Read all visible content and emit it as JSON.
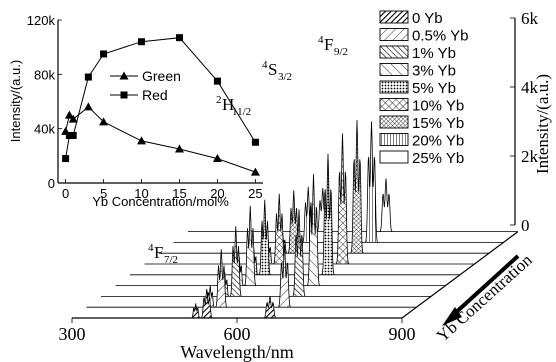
{
  "chart_data": [
    {
      "type": "line",
      "panel": "main-3d-spectra",
      "xlabel": "Wavelength/nm",
      "ylabel": "Intensity/(a.u.)",
      "zlabel": "Yb Concentration",
      "x_ticks": [
        "300",
        "600",
        "900"
      ],
      "xlim": [
        300,
        900
      ],
      "y_ticks": [
        "0",
        "2k",
        "4k",
        "6k"
      ],
      "ylim": [
        0,
        6000
      ],
      "legend": {
        "placement": "top-right",
        "entries": [
          "0 Yb",
          "0.5% Yb",
          "1% Yb",
          "3% Yb",
          "5% Yb",
          "10% Yb",
          "15% Yb",
          "20% Yb",
          "25% Yb"
        ]
      },
      "annotations": [
        {
          "sup": "4",
          "base": "F",
          "sub": "7/2"
        },
        {
          "sup": "2",
          "base": "H",
          "sub": "11/2"
        },
        {
          "sup": "4",
          "base": "S",
          "sub": "3/2"
        },
        {
          "sup": "4",
          "base": "F",
          "sub": "9/2"
        }
      ],
      "series": [
        {
          "name": "0 Yb",
          "peaks": [
            {
              "x": 525,
              "y": 600
            },
            {
              "x": 545,
              "y": 1200
            },
            {
              "x": 660,
              "y": 900
            }
          ]
        },
        {
          "name": "0.5% Yb",
          "peaks": [
            {
              "x": 525,
              "y": 900
            },
            {
              "x": 545,
              "y": 2400
            },
            {
              "x": 660,
              "y": 2600
            }
          ]
        },
        {
          "name": "1% Yb",
          "peaks": [
            {
              "x": 525,
              "y": 1000
            },
            {
              "x": 545,
              "y": 2900
            },
            {
              "x": 660,
              "y": 3600
            }
          ]
        },
        {
          "name": "3% Yb",
          "peaks": [
            {
              "x": 525,
              "y": 1200
            },
            {
              "x": 545,
              "y": 3300
            },
            {
              "x": 660,
              "y": 4600
            }
          ]
        },
        {
          "name": "5% Yb",
          "peaks": [
            {
              "x": 525,
              "y": 1100
            },
            {
              "x": 545,
              "y": 3100
            },
            {
              "x": 660,
              "y": 5000
            }
          ]
        },
        {
          "name": "10% Yb",
          "peaks": [
            {
              "x": 525,
              "y": 1000
            },
            {
              "x": 545,
              "y": 2900
            },
            {
              "x": 660,
              "y": 5400
            }
          ]
        },
        {
          "name": "15% Yb",
          "peaks": [
            {
              "x": 525,
              "y": 800
            },
            {
              "x": 545,
              "y": 2600
            },
            {
              "x": 660,
              "y": 5500
            }
          ]
        },
        {
          "name": "20% Yb",
          "peaks": [
            {
              "x": 525,
              "y": 700
            },
            {
              "x": 545,
              "y": 2300
            },
            {
              "x": 660,
              "y": 5000
            }
          ]
        },
        {
          "name": "25% Yb",
          "peaks": [
            {
              "x": 525,
              "y": 500
            },
            {
              "x": 545,
              "y": 1800
            },
            {
              "x": 660,
              "y": 2200
            }
          ]
        }
      ]
    },
    {
      "type": "line",
      "panel": "inset",
      "xlabel": "Yb Concentration/mol%",
      "ylabel": "Intensity/(a.u.)",
      "x_ticks": [
        "0",
        "5",
        "10",
        "15",
        "20",
        "25"
      ],
      "xlim": [
        -1,
        26
      ],
      "y_ticks": [
        "0",
        "40k",
        "80k",
        "120k"
      ],
      "ylim": [
        0,
        120000
      ],
      "legend": {
        "placement": "top-center",
        "entries": [
          "Green",
          "Red"
        ]
      },
      "series": [
        {
          "name": "Green",
          "marker": "triangle",
          "x": [
            0,
            0.5,
            1,
            3,
            5,
            10,
            15,
            20,
            25
          ],
          "y": [
            38000,
            50000,
            47000,
            56000,
            45000,
            31000,
            25000,
            18000,
            8000
          ]
        },
        {
          "name": "Red",
          "marker": "square",
          "x": [
            0,
            0.5,
            1,
            3,
            5,
            10,
            15,
            20,
            25
          ],
          "y": [
            18000,
            35000,
            35000,
            78000,
            95000,
            104000,
            107000,
            75000,
            30000
          ]
        }
      ]
    }
  ]
}
